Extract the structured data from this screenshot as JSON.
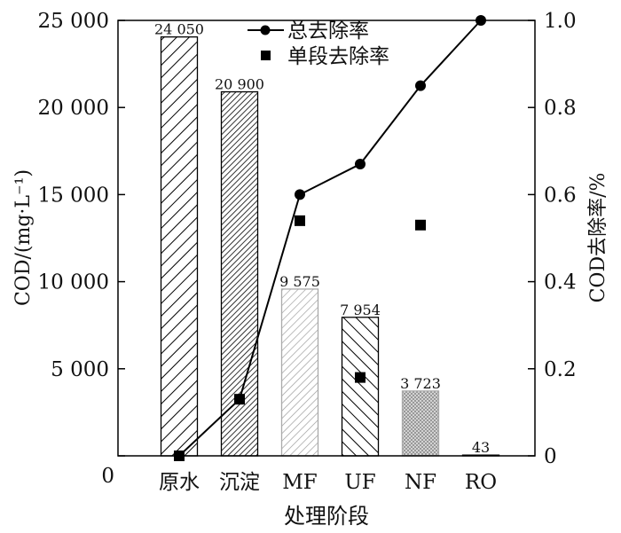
{
  "chart_data": {
    "type": "bar",
    "xlabel": "处理阶段",
    "ylabel": "COD/(mg·L⁻¹)",
    "y2label": "COD去除率/%",
    "categories": [
      "原水",
      "沉淀",
      "MF",
      "UF",
      "NF",
      "RO"
    ],
    "ylim": [
      0,
      25000
    ],
    "y2lim": [
      0,
      1.0
    ],
    "y_ticks": [
      "0",
      "5 000",
      "10 000",
      "15 000",
      "20 000",
      "25 000"
    ],
    "y2_ticks": [
      "0",
      "0.2",
      "0.4",
      "0.6",
      "0.8",
      "1.0"
    ],
    "bars": {
      "values": [
        24050,
        20900,
        9575,
        7954,
        3723,
        43
      ],
      "value_labels": [
        "24 050",
        "20 900",
        "9 575",
        "7 954",
        "3 723",
        "43"
      ],
      "patterns": [
        "hatch-wide",
        "hatch-dense",
        "hatch-light",
        "hatch-back",
        "crosshatch",
        "none"
      ]
    },
    "series": [
      {
        "name": "总去除率",
        "type": "line",
        "marker": "circle",
        "axis": "right",
        "values": [
          0.0,
          0.13,
          0.6,
          0.67,
          0.85,
          1.0
        ]
      },
      {
        "name": "单段去除率",
        "type": "scatter",
        "marker": "square",
        "axis": "right",
        "values": [
          0.0,
          0.13,
          0.54,
          0.18,
          0.53,
          null
        ]
      }
    ],
    "legend_position": "top-center",
    "grid": false
  }
}
